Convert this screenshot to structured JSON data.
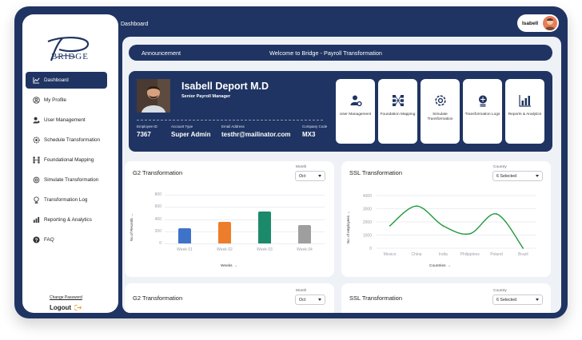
{
  "header": {
    "title": "Dashboard",
    "user_name": "Isabell"
  },
  "sidebar": {
    "logo_text": "BRIDGE",
    "items": [
      {
        "label": "Dashboard",
        "icon": "chart-line-icon",
        "active": true
      },
      {
        "label": "My Profile",
        "icon": "user-circle-icon",
        "active": false
      },
      {
        "label": "User Management",
        "icon": "user-gear-icon",
        "active": false
      },
      {
        "label": "Schedule Transformation",
        "icon": "gear-clock-icon",
        "active": false
      },
      {
        "label": "Foundational Mapping",
        "icon": "mapping-icon",
        "active": false
      },
      {
        "label": "Simulate Transformation",
        "icon": "simulate-icon",
        "active": false
      },
      {
        "label": "Transformation Log",
        "icon": "log-icon",
        "active": false
      },
      {
        "label": "Reporting & Analytics",
        "icon": "analytics-icon",
        "active": false
      },
      {
        "label": "FAQ",
        "icon": "question-icon",
        "active": false
      }
    ],
    "change_password": "Change Password",
    "logout": "Logout"
  },
  "announcement": {
    "label": "Announcement",
    "message": "Welcome to Bridge - Payroll Transformation"
  },
  "profile": {
    "name": "Isabell Deport M.D",
    "role": "Senior Payroll Manager",
    "fields": [
      {
        "key": "Employee ID",
        "value": "7367"
      },
      {
        "key": "Account Type",
        "value": "Super Admin"
      },
      {
        "key": "Email Address",
        "value": "testhr@mailinator.com"
      },
      {
        "key": "Company Code",
        "value": "MX3"
      }
    ]
  },
  "tiles": [
    {
      "label": "User Management",
      "icon": "user-gear-icon"
    },
    {
      "label": "Foundation Mapping",
      "icon": "mapping-icon"
    },
    {
      "label": "Simulate Transformation",
      "icon": "simulate-icon"
    },
    {
      "label": "Transformation Logs",
      "icon": "log-icon"
    },
    {
      "label": "Reports & Analytics",
      "icon": "analytics-icon"
    }
  ],
  "cards": {
    "g2": {
      "title": "G2 Transformation",
      "select_label": "Month",
      "select_value": "Oct"
    },
    "ssl": {
      "title": "SSL Transformation",
      "select_label": "Country",
      "select_value": "6 Selected"
    },
    "g2b": {
      "title": "G2 Transformation",
      "select_label": "Month",
      "select_value": "Oct"
    },
    "sslb": {
      "title": "SSL Transformation",
      "select_label": "Country",
      "select_value": "6 Selected"
    }
  },
  "chart_data": [
    {
      "type": "bar",
      "xlabel": "Weeks →",
      "ylabel": "No.of Records →",
      "categories": [
        "Week 01",
        "Week 02",
        "Week 03",
        "Week 04"
      ],
      "values": [
        250,
        360,
        530,
        300
      ],
      "colors": [
        "#3f72c9",
        "#ee7d2b",
        "#1b8a6b",
        "#9e9e9e"
      ],
      "ylim": [
        0,
        800
      ],
      "yticks": [
        0,
        200,
        400,
        600,
        800
      ]
    },
    {
      "type": "line",
      "xlabel": "Countries →",
      "ylabel": "No. of employees →",
      "categories": [
        "Mexico",
        "China",
        "India",
        "Philippines",
        "Poland",
        "Brazil"
      ],
      "values": [
        1700,
        3200,
        1700,
        1100,
        2600,
        0
      ],
      "color": "#1d9a3b",
      "ylim": [
        0,
        4000
      ],
      "yticks": [
        0,
        1000,
        2000,
        3000,
        4000
      ]
    }
  ]
}
